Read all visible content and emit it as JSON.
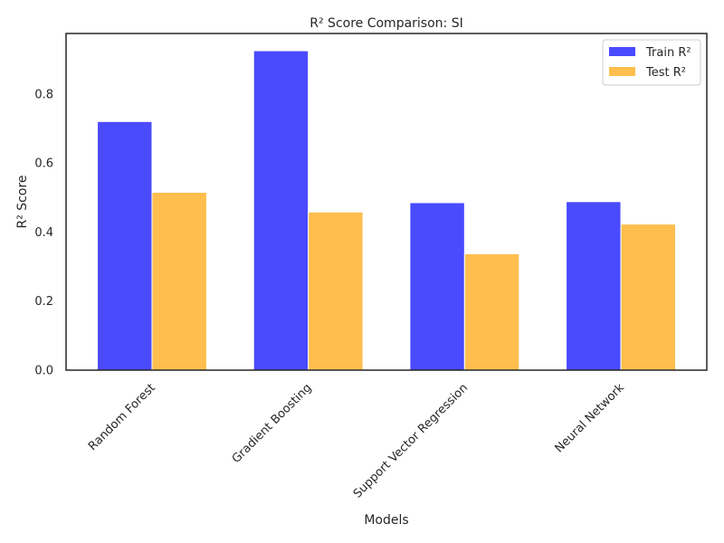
{
  "chart_data": {
    "type": "bar",
    "title": "R² Score Comparison: SI",
    "xlabel": "Models",
    "ylabel": "R² Score",
    "categories": [
      "Random Forest",
      "Gradient Boosting",
      "Support Vector Regression",
      "Neural Network"
    ],
    "series": [
      {
        "name": "Train R²",
        "values": [
          0.72,
          0.925,
          0.485,
          0.488
        ],
        "color": "#4a4aff"
      },
      {
        "name": "Test R²",
        "values": [
          0.515,
          0.458,
          0.337,
          0.423
        ],
        "color": "#ffbe4d"
      }
    ],
    "ylim": [
      0,
      0.975
    ],
    "yticks": [
      0.0,
      0.2,
      0.4,
      0.6,
      0.8
    ],
    "ytick_labels": [
      "0.0",
      "0.2",
      "0.4",
      "0.6",
      "0.8"
    ],
    "grid": false,
    "legend_position": "top-right",
    "x_tick_rotation": 45
  }
}
